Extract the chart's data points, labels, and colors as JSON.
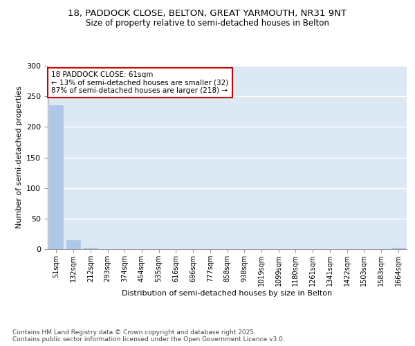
{
  "title_line1": "18, PADDOCK CLOSE, BELTON, GREAT YARMOUTH, NR31 9NT",
  "title_line2": "Size of property relative to semi-detached houses in Belton",
  "xlabel": "Distribution of semi-detached houses by size in Belton",
  "ylabel": "Number of semi-detached properties",
  "categories": [
    "51sqm",
    "132sqm",
    "212sqm",
    "293sqm",
    "374sqm",
    "454sqm",
    "535sqm",
    "616sqm",
    "696sqm",
    "777sqm",
    "858sqm",
    "938sqm",
    "1019sqm",
    "1099sqm",
    "1180sqm",
    "1261sqm",
    "1341sqm",
    "1422sqm",
    "1503sqm",
    "1583sqm",
    "1664sqm"
  ],
  "values": [
    235,
    15,
    2,
    0,
    0,
    0,
    0,
    0,
    0,
    0,
    0,
    0,
    0,
    0,
    0,
    0,
    0,
    0,
    0,
    0,
    2
  ],
  "bar_color": "#aec6e8",
  "annotation_text": "18 PADDOCK CLOSE: 61sqm\n← 13% of semi-detached houses are smaller (32)\n87% of semi-detached houses are larger (218) →",
  "annotation_box_color": "#ffffff",
  "annotation_border_color": "#cc0000",
  "ylim": [
    0,
    300
  ],
  "yticks": [
    0,
    50,
    100,
    150,
    200,
    250,
    300
  ],
  "background_color": "#dce9f5",
  "grid_color": "#ffffff",
  "footer_text": "Contains HM Land Registry data © Crown copyright and database right 2025.\nContains public sector information licensed under the Open Government Licence v3.0.",
  "fig_bg_color": "#ffffff"
}
